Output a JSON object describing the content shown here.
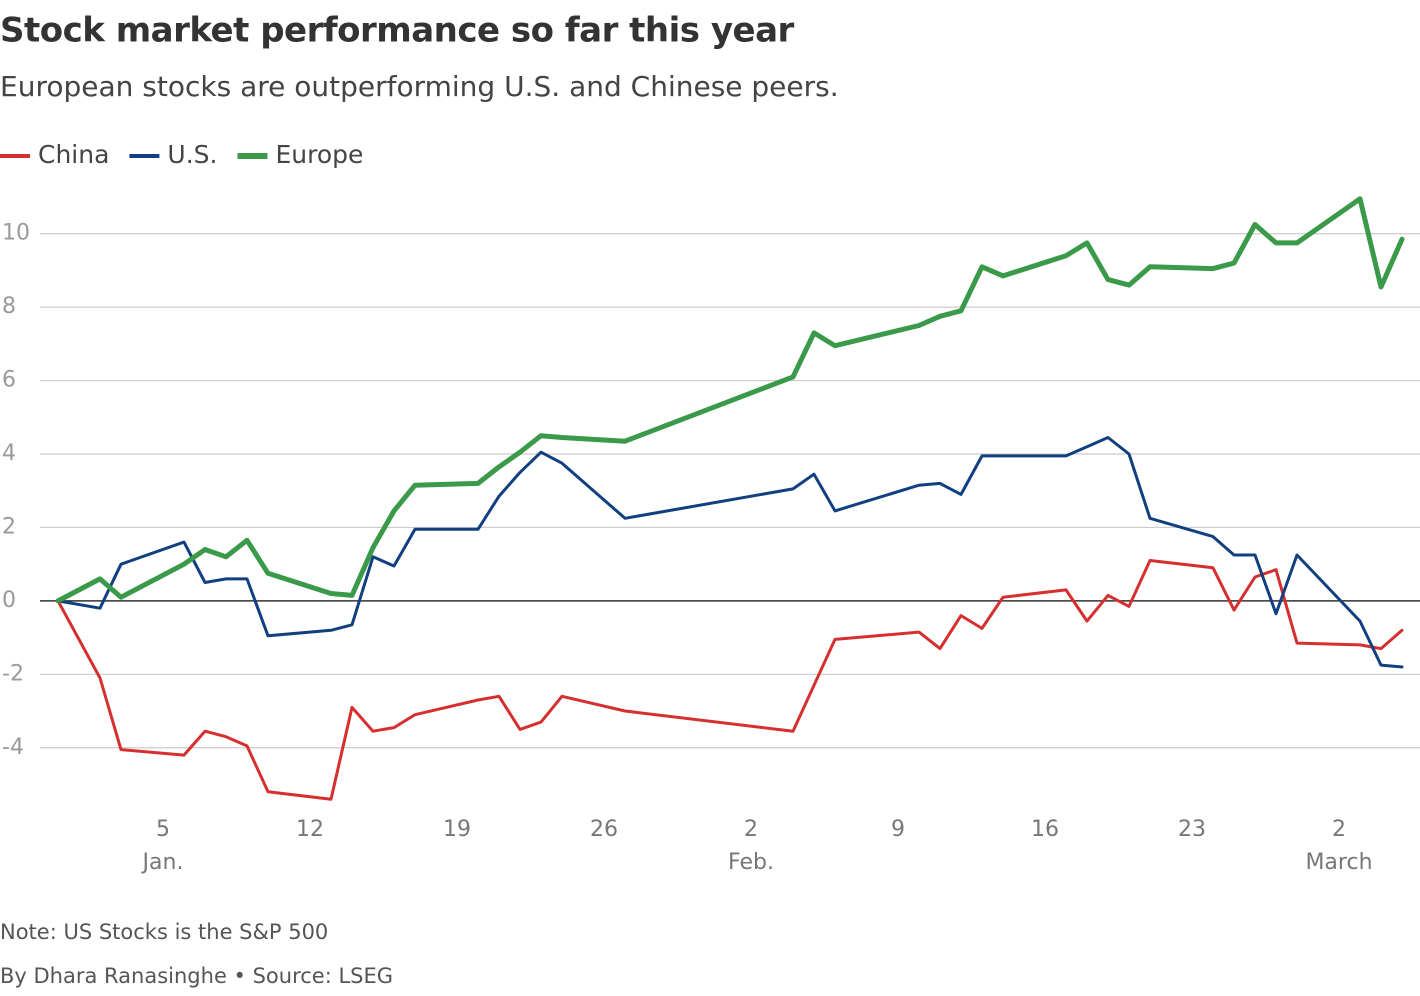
{
  "chart_data": {
    "type": "line",
    "title": "Stock market performance so far this year",
    "subtitle": "European stocks are outperforming U.S. and Chinese peers.",
    "note": "Note: US Stocks is the S&P 500",
    "source": "By Dhara Ranasinghe • Source: LSEG",
    "x": [
      0,
      2,
      3,
      6,
      7,
      8,
      9,
      10,
      13,
      14,
      15,
      16,
      17,
      20,
      21,
      22,
      23,
      24,
      27,
      35,
      36,
      37,
      41,
      42,
      43,
      44,
      45,
      48,
      49,
      50,
      51,
      52,
      55,
      56,
      57,
      58,
      59,
      62,
      63,
      64
    ],
    "xlim": [
      0,
      64
    ],
    "xticks": [
      5,
      12,
      19,
      26,
      {
        "value": 33,
        "label": "2"
      },
      {
        "value": 40,
        "label": "9"
      },
      {
        "value": 47,
        "label": "16"
      },
      {
        "value": 54,
        "label": "23"
      },
      {
        "value": 61,
        "label": "2"
      }
    ],
    "month_labels": [
      {
        "value": 5,
        "label": "Jan."
      },
      {
        "value": 33,
        "label": "Feb."
      },
      {
        "value": 61,
        "label": "March"
      }
    ],
    "ylim": [
      -5.6,
      11
    ],
    "yticks": [
      -4,
      -2,
      0,
      2,
      4,
      6,
      8,
      10
    ],
    "grid": true,
    "series": [
      {
        "name": "China",
        "color": "#d62f2f",
        "line_width": 3,
        "values": [
          0,
          -2.1,
          -4.05,
          -4.2,
          -3.55,
          -3.7,
          -3.95,
          -5.2,
          -5.4,
          -2.9,
          -3.55,
          -3.45,
          -3.1,
          -2.7,
          -2.6,
          -3.5,
          -3.3,
          -2.6,
          -3.0,
          -3.55,
          -2.3,
          -1.05,
          -0.85,
          -1.3,
          -0.4,
          -0.75,
          0.1,
          0.3,
          -0.55,
          0.15,
          -0.15,
          1.1,
          0.9,
          -0.25,
          0.65,
          0.85,
          -1.15,
          -1.2,
          -1.3,
          -0.8
        ]
      },
      {
        "name": "U.S.",
        "color": "#123f80",
        "line_width": 3,
        "values": [
          0,
          -0.2,
          1.0,
          1.6,
          0.5,
          0.6,
          0.6,
          -0.95,
          -0.8,
          -0.65,
          1.2,
          0.95,
          1.95,
          1.95,
          2.85,
          3.5,
          4.05,
          3.75,
          2.25,
          3.05,
          3.45,
          2.45,
          3.15,
          3.2,
          2.9,
          3.95,
          3.95,
          3.95,
          4.2,
          4.45,
          4.0,
          2.25,
          1.75,
          1.25,
          1.25,
          -0.35,
          1.25,
          -0.55,
          -1.75,
          -1.8
        ]
      },
      {
        "name": "Europe",
        "color": "#3a9a4a",
        "line_width": 5,
        "values": [
          0,
          0.6,
          0.1,
          1.0,
          1.4,
          1.2,
          1.65,
          0.75,
          0.2,
          0.15,
          1.45,
          2.45,
          3.15,
          3.2,
          3.65,
          4.05,
          4.5,
          4.45,
          4.35,
          6.1,
          7.3,
          6.95,
          7.5,
          7.75,
          7.9,
          9.1,
          8.85,
          9.4,
          9.75,
          8.75,
          8.6,
          9.1,
          9.05,
          9.2,
          10.25,
          9.75,
          9.75,
          10.95,
          8.55,
          9.85
        ]
      }
    ]
  }
}
